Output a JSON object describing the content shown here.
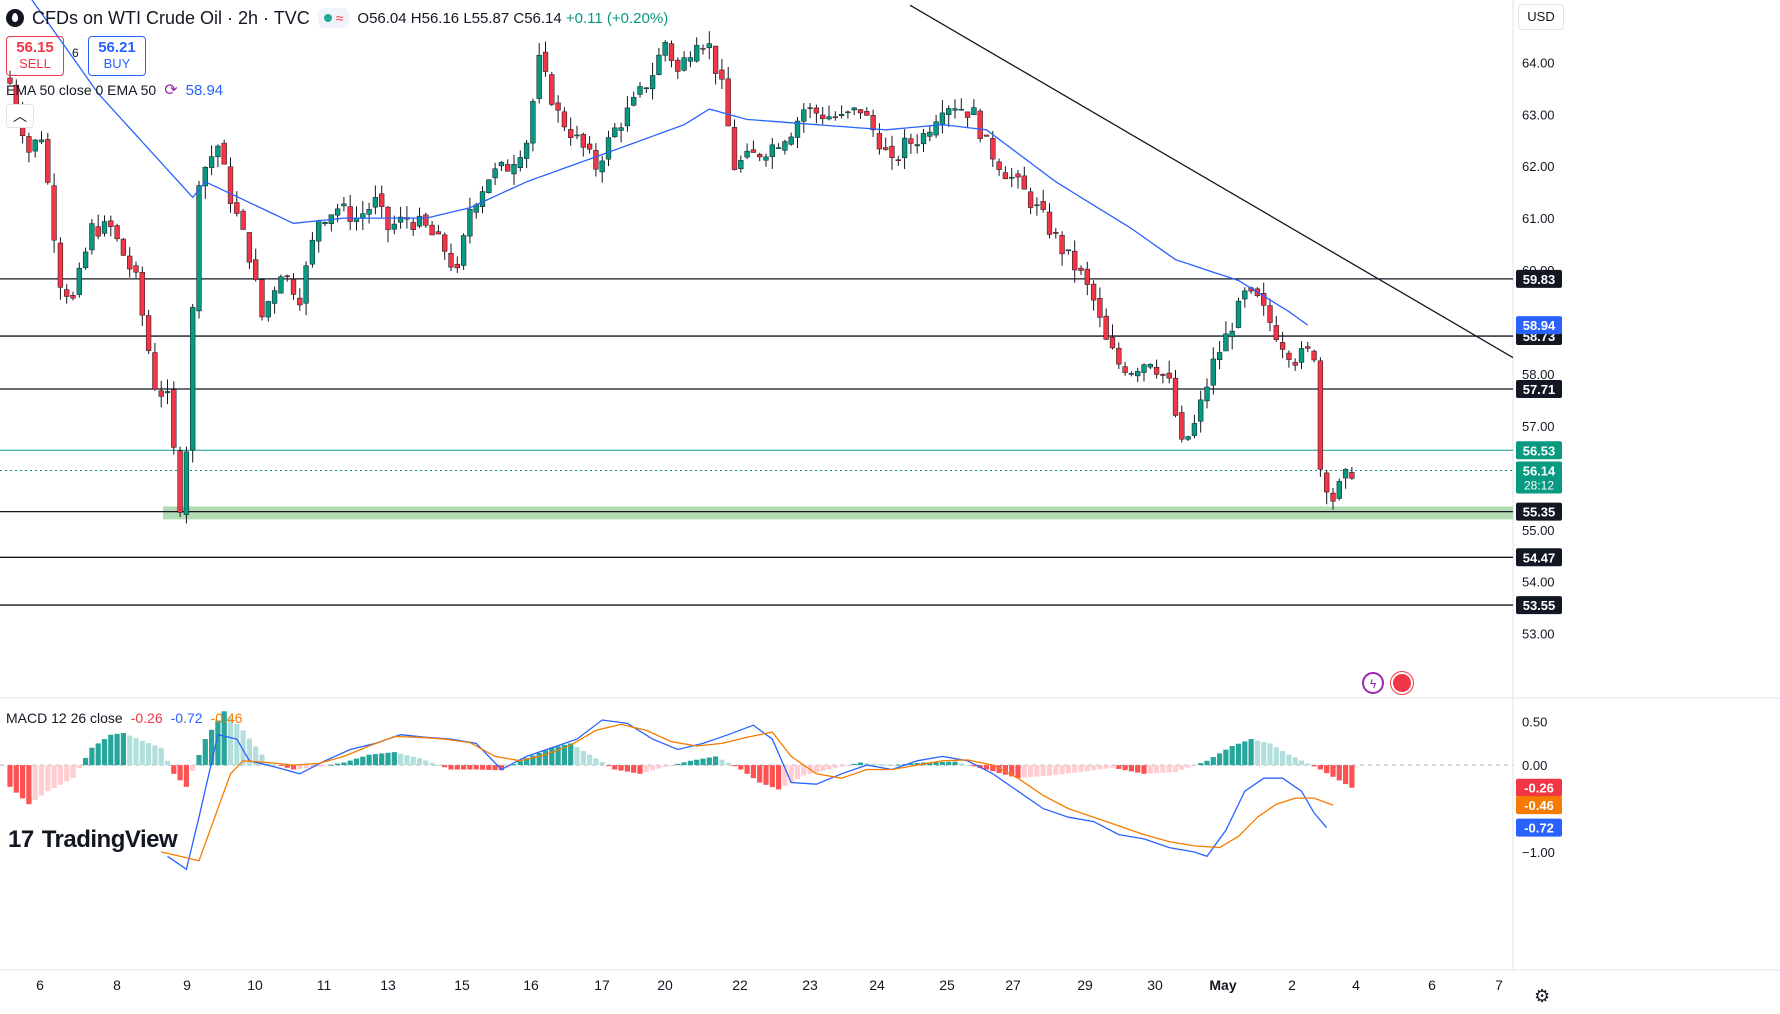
{
  "header": {
    "title": "CFDs on WTI Crude Oil · 2h · TVC",
    "ohlc": "O56.04 H56.16 L55.87 C56.14",
    "change": "+0.11 (+0.20%)",
    "status_wave": "≈"
  },
  "trade": {
    "sell_price": "56.15",
    "sell_label": "SELL",
    "buy_price": "56.21",
    "buy_label": "BUY",
    "spread": "6"
  },
  "ema_legend": {
    "label": "EMA 50 close 0 EMA 50",
    "value": "58.94"
  },
  "macd_legend": {
    "label": "MACD 12 26 close",
    "hist": "-0.26",
    "macd": "-0.72",
    "signal": "-0.46"
  },
  "currency": "USD",
  "logo": {
    "text": "TradingView",
    "mark": "17"
  },
  "colors": {
    "up": "#089981",
    "down": "#f23645",
    "ema": "#2962ff",
    "signal": "#f57c00",
    "support_zone": "#a5d6a7"
  },
  "chart_data": [
    {
      "type": "candlestick",
      "title": "CFDs on WTI Crude Oil · 2h · TVC",
      "ylim": [
        52.3,
        65.2
      ],
      "y_ticks": [
        53.0,
        54.0,
        55.0,
        56.0,
        57.0,
        58.0,
        59.0,
        60.0,
        61.0,
        62.0,
        63.0,
        64.0
      ],
      "x_ticks": [
        "6",
        "8",
        "9",
        "10",
        "11",
        "13",
        "15",
        "16",
        "17",
        "20",
        "22",
        "23",
        "24",
        "25",
        "27",
        "29",
        "30",
        "May",
        "2",
        "4",
        "6",
        "7"
      ],
      "horizontal_levels": [
        {
          "value": 59.83,
          "label": "59.83",
          "color": "#131722"
        },
        {
          "value": 58.73,
          "label": "58.73",
          "color": "#131722"
        },
        {
          "value": 57.71,
          "label": "57.71",
          "color": "#131722"
        },
        {
          "value": 56.53,
          "label": "56.53",
          "color": "#089981"
        },
        {
          "value": 55.35,
          "label": "55.35",
          "color": "#131722"
        },
        {
          "value": 54.47,
          "label": "54.47",
          "color": "#131722"
        },
        {
          "value": 53.55,
          "label": "53.55",
          "color": "#131722"
        }
      ],
      "price_labels": [
        {
          "value": 58.94,
          "label": "58.94",
          "color": "#2962ff"
        },
        {
          "value": 56.14,
          "label": "56.14",
          "sub": "28:12",
          "color": "#089981"
        }
      ],
      "support_zone": [
        55.2,
        55.45
      ],
      "trendline": [
        {
          "x": 0,
          "y": 65.1
        },
        {
          "x": 129,
          "y": 56.87
        }
      ],
      "close_anchors": [
        [
          0,
          63.6
        ],
        [
          3,
          62.3
        ],
        [
          5,
          62.6
        ],
        [
          8,
          59.8
        ],
        [
          10,
          59.4
        ],
        [
          13,
          60.8
        ],
        [
          16,
          60.8
        ],
        [
          20,
          59.8
        ],
        [
          23,
          57.8
        ],
        [
          25,
          57.5
        ],
        [
          27,
          55.5
        ],
        [
          28,
          56.6
        ],
        [
          30,
          61.8
        ],
        [
          33,
          62.4
        ],
        [
          35,
          61.4
        ],
        [
          38,
          60.3
        ],
        [
          40,
          59.1
        ],
        [
          43,
          60.0
        ],
        [
          46,
          59.5
        ],
        [
          49,
          61.0
        ],
        [
          52,
          61.2
        ],
        [
          55,
          61.0
        ],
        [
          58,
          61.3
        ],
        [
          60,
          60.8
        ],
        [
          63,
          61.0
        ],
        [
          66,
          60.8
        ],
        [
          69,
          60.4
        ],
        [
          71,
          59.9
        ],
        [
          73,
          61.2
        ],
        [
          76,
          61.8
        ],
        [
          79,
          62.0
        ],
        [
          82,
          62.5
        ],
        [
          84,
          64.0
        ],
        [
          87,
          63.0
        ],
        [
          90,
          62.5
        ],
        [
          93,
          62.0
        ],
        [
          96,
          62.7
        ],
        [
          99,
          63.2
        ],
        [
          102,
          63.8
        ],
        [
          104,
          64.4
        ],
        [
          106,
          63.8
        ],
        [
          109,
          64.5
        ],
        [
          111,
          64.3
        ],
        [
          113,
          63.5
        ],
        [
          115,
          62.0
        ],
        [
          118,
          62.2
        ],
        [
          121,
          62.4
        ],
        [
          124,
          62.7
        ],
        [
          126,
          63.1
        ],
        [
          129,
          63.0
        ],
        [
          132,
          62.9
        ],
        [
          135,
          63.1
        ],
        [
          138,
          62.5
        ],
        [
          140,
          62.0
        ],
        [
          142,
          62.4
        ],
        [
          145,
          62.6
        ],
        [
          148,
          63.2
        ],
        [
          150,
          63.2
        ],
        [
          153,
          63.0
        ],
        [
          155,
          62.4
        ],
        [
          158,
          61.9
        ],
        [
          161,
          61.5
        ],
        [
          164,
          61.0
        ],
        [
          167,
          60.4
        ],
        [
          170,
          59.9
        ],
        [
          172,
          59.4
        ],
        [
          174,
          58.6
        ],
        [
          176,
          58.2
        ],
        [
          178,
          58.1
        ],
        [
          181,
          58.3
        ],
        [
          184,
          57.8
        ],
        [
          186,
          56.6
        ],
        [
          188,
          57.0
        ],
        [
          191,
          58.2
        ],
        [
          193,
          58.7
        ],
        [
          196,
          59.5
        ],
        [
          198,
          59.4
        ],
        [
          200,
          59.0
        ],
        [
          202,
          58.6
        ],
        [
          204,
          58.3
        ],
        [
          206,
          58.4
        ],
        [
          207,
          58.4
        ],
        [
          208,
          56.2
        ],
        [
          210,
          55.6
        ],
        [
          212,
          56.0
        ],
        [
          213,
          56.14
        ]
      ],
      "ema50_anchors": [
        [
          0,
          65.8
        ],
        [
          14,
          63.4
        ],
        [
          29,
          61.4
        ],
        [
          31,
          61.7
        ],
        [
          38,
          61.3
        ],
        [
          45,
          60.9
        ],
        [
          53,
          61.0
        ],
        [
          66,
          61.0
        ],
        [
          73,
          61.2
        ],
        [
          82,
          61.7
        ],
        [
          98,
          62.4
        ],
        [
          107,
          62.8
        ],
        [
          111,
          63.1
        ],
        [
          117,
          62.9
        ],
        [
          128,
          62.8
        ],
        [
          139,
          62.7
        ],
        [
          148,
          62.8
        ],
        [
          155,
          62.7
        ],
        [
          166,
          61.7
        ],
        [
          178,
          60.8
        ],
        [
          185,
          60.2
        ],
        [
          195,
          59.8
        ],
        [
          203,
          59.2
        ],
        [
          206,
          58.94
        ]
      ],
      "events": [
        "lightning-event-icon",
        "us-flag-event-icon"
      ]
    },
    {
      "type": "macd",
      "title": "MACD 12 26 close",
      "ylim": [
        -1.15,
        0.75
      ],
      "y_ticks": [
        0.5,
        0.0
      ],
      "price_labels": [
        {
          "value": -0.26,
          "label": "-0.26",
          "color": "#f23645"
        },
        {
          "value": -0.46,
          "label": "-0.46",
          "color": "#f57c00"
        },
        {
          "value": -0.72,
          "label": "-0.72",
          "color": "#2962ff"
        },
        {
          "value": -1.0,
          "label": "−1.00",
          "color": "#131722"
        }
      ],
      "hist_anchors": [
        [
          0,
          -0.25
        ],
        [
          3,
          -0.45
        ],
        [
          6,
          -0.3
        ],
        [
          10,
          -0.15
        ],
        [
          13,
          0.2
        ],
        [
          16,
          0.35
        ],
        [
          18,
          0.37
        ],
        [
          21,
          0.28
        ],
        [
          24,
          0.2
        ],
        [
          26,
          -0.1
        ],
        [
          28,
          -0.25
        ],
        [
          31,
          0.3
        ],
        [
          34,
          0.62
        ],
        [
          37,
          0.4
        ],
        [
          41,
          0.03
        ],
        [
          45,
          -0.05
        ],
        [
          49,
          -0.02
        ],
        [
          53,
          0.03
        ],
        [
          57,
          0.12
        ],
        [
          61,
          0.15
        ],
        [
          65,
          0.08
        ],
        [
          70,
          -0.05
        ],
        [
          74,
          -0.05
        ],
        [
          78,
          -0.06
        ],
        [
          82,
          0.08
        ],
        [
          86,
          0.2
        ],
        [
          89,
          0.25
        ],
        [
          92,
          0.12
        ],
        [
          96,
          -0.05
        ],
        [
          100,
          -0.1
        ],
        [
          104,
          -0.02
        ],
        [
          108,
          0.05
        ],
        [
          112,
          0.1
        ],
        [
          116,
          -0.05
        ],
        [
          119,
          -0.2
        ],
        [
          122,
          -0.28
        ],
        [
          126,
          -0.12
        ],
        [
          130,
          -0.05
        ],
        [
          135,
          0.03
        ],
        [
          140,
          0.0
        ],
        [
          145,
          0.03
        ],
        [
          150,
          0.04
        ],
        [
          155,
          -0.05
        ],
        [
          160,
          -0.15
        ],
        [
          165,
          -0.12
        ],
        [
          170,
          -0.08
        ],
        [
          175,
          -0.03
        ],
        [
          180,
          -0.1
        ],
        [
          185,
          -0.08
        ],
        [
          190,
          0.05
        ],
        [
          194,
          0.22
        ],
        [
          197,
          0.3
        ],
        [
          200,
          0.25
        ],
        [
          203,
          0.12
        ],
        [
          206,
          0.02
        ],
        [
          208,
          -0.05
        ],
        [
          213,
          -0.26
        ]
      ],
      "macd_anchors": [
        [
          25,
          -1.05
        ],
        [
          28,
          -1.2
        ],
        [
          30,
          -0.6
        ],
        [
          33,
          0.35
        ],
        [
          36,
          0.3
        ],
        [
          38,
          0.05
        ],
        [
          42,
          -0.02
        ],
        [
          46,
          -0.1
        ],
        [
          50,
          0.05
        ],
        [
          54,
          0.18
        ],
        [
          58,
          0.25
        ],
        [
          62,
          0.35
        ],
        [
          66,
          0.32
        ],
        [
          70,
          0.3
        ],
        [
          74,
          0.25
        ],
        [
          78,
          -0.05
        ],
        [
          82,
          0.1
        ],
        [
          86,
          0.2
        ],
        [
          90,
          0.3
        ],
        [
          94,
          0.52
        ],
        [
          98,
          0.48
        ],
        [
          102,
          0.3
        ],
        [
          106,
          0.18
        ],
        [
          110,
          0.25
        ],
        [
          114,
          0.35
        ],
        [
          118,
          0.46
        ],
        [
          121,
          0.3
        ],
        [
          124,
          -0.2
        ],
        [
          128,
          -0.22
        ],
        [
          132,
          -0.1
        ],
        [
          136,
          0.0
        ],
        [
          140,
          -0.05
        ],
        [
          144,
          0.05
        ],
        [
          148,
          0.1
        ],
        [
          152,
          0.05
        ],
        [
          156,
          -0.1
        ],
        [
          160,
          -0.3
        ],
        [
          164,
          -0.5
        ],
        [
          168,
          -0.6
        ],
        [
          172,
          -0.65
        ],
        [
          176,
          -0.8
        ],
        [
          180,
          -0.85
        ],
        [
          184,
          -0.95
        ],
        [
          188,
          -1.0
        ],
        [
          190,
          -1.05
        ],
        [
          193,
          -0.75
        ],
        [
          196,
          -0.3
        ],
        [
          199,
          -0.15
        ],
        [
          202,
          -0.15
        ],
        [
          205,
          -0.3
        ],
        [
          207,
          -0.55
        ],
        [
          209,
          -0.72
        ]
      ],
      "signal_anchors": [
        [
          24,
          -1.0
        ],
        [
          27,
          -1.05
        ],
        [
          30,
          -1.1
        ],
        [
          33,
          -0.5
        ],
        [
          35,
          -0.1
        ],
        [
          37,
          0.05
        ],
        [
          41,
          0.03
        ],
        [
          45,
          0.0
        ],
        [
          49,
          0.02
        ],
        [
          53,
          0.1
        ],
        [
          57,
          0.22
        ],
        [
          61,
          0.33
        ],
        [
          65,
          0.32
        ],
        [
          69,
          0.3
        ],
        [
          73,
          0.26
        ],
        [
          77,
          0.1
        ],
        [
          81,
          0.05
        ],
        [
          85,
          0.12
        ],
        [
          89,
          0.23
        ],
        [
          93,
          0.4
        ],
        [
          97,
          0.47
        ],
        [
          101,
          0.4
        ],
        [
          105,
          0.27
        ],
        [
          109,
          0.22
        ],
        [
          113,
          0.25
        ],
        [
          117,
          0.32
        ],
        [
          121,
          0.38
        ],
        [
          124,
          0.1
        ],
        [
          128,
          -0.1
        ],
        [
          132,
          -0.15
        ],
        [
          136,
          -0.05
        ],
        [
          140,
          -0.05
        ],
        [
          144,
          0.0
        ],
        [
          148,
          0.05
        ],
        [
          152,
          0.06
        ],
        [
          156,
          0.0
        ],
        [
          160,
          -0.15
        ],
        [
          164,
          -0.35
        ],
        [
          168,
          -0.5
        ],
        [
          172,
          -0.6
        ],
        [
          176,
          -0.7
        ],
        [
          180,
          -0.8
        ],
        [
          184,
          -0.88
        ],
        [
          188,
          -0.93
        ],
        [
          192,
          -0.95
        ],
        [
          195,
          -0.82
        ],
        [
          198,
          -0.6
        ],
        [
          201,
          -0.45
        ],
        [
          204,
          -0.38
        ],
        [
          207,
          -0.38
        ],
        [
          210,
          -0.46
        ]
      ]
    }
  ]
}
